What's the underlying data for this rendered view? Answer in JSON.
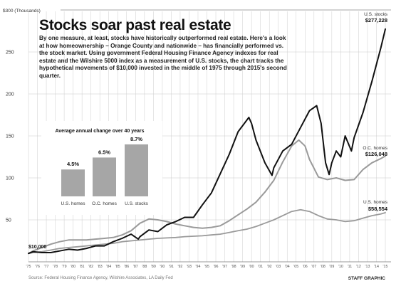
{
  "headline": "Stocks soar past real estate",
  "intro": "By one measure, at least, stocks have historically outperformed real estate. Here's a look at how homeownership – Orange County and nationwide – has financially performed vs. the stock market. Using government Federal Housing Finance Agency indexes for real estate and the Wilshire 5000 index as a measurement of U.S. stocks, the chart tracks the hypothetical movements of $10,000 invested in the middle of 1975 through 2015's second quarter.",
  "footer": {
    "source": "Source: Federal Housing Finance Agency, Wilshire Associates, LA Daily Fed",
    "credit": "STAFF GRAPHIC"
  },
  "colors": {
    "stocks": "#111111",
    "oc_homes": "#9a9a9a",
    "us_homes": "#9a9a9a",
    "grid": "#c8c8c8",
    "inset_bars": "#a6a6a6"
  },
  "chart_data": [
    {
      "type": "line",
      "ylabel": "$300 (Thousands)",
      "ylim": [
        0,
        300
      ],
      "yticks": [
        50,
        100,
        150,
        200,
        250
      ],
      "xlim": [
        1975.5,
        2015.5
      ],
      "xtick_labels": [
        "'75",
        "'76",
        "'77",
        "'78",
        "'79",
        "'80",
        "'81",
        "'82",
        "'83",
        "'84",
        "'85",
        "'86",
        "'87",
        "'88",
        "'89",
        "'90",
        "'91",
        "'92",
        "'93",
        "'94",
        "'95",
        "'96",
        "'97",
        "'98",
        "'99",
        "'00",
        "'01",
        "'02",
        "'03",
        "'04",
        "'05",
        "'06",
        "'07",
        "'08",
        "'09",
        "'10",
        "'11",
        "'12",
        "'13",
        "'14",
        "'15"
      ],
      "start_label": "$10,000",
      "grid": true,
      "series": [
        {
          "name": "U.S. stocks",
          "end_label": "$277,228",
          "points": [
            [
              1975.5,
              10
            ],
            [
              1976,
              12
            ],
            [
              1977,
              11
            ],
            [
              1978,
              11
            ],
            [
              1979,
              13
            ],
            [
              1980,
              15
            ],
            [
              1981,
              14
            ],
            [
              1982,
              16
            ],
            [
              1983,
              19
            ],
            [
              1984,
              19
            ],
            [
              1985,
              24
            ],
            [
              1986,
              28
            ],
            [
              1987,
              33
            ],
            [
              1987.8,
              27
            ],
            [
              1988,
              30
            ],
            [
              1989,
              38
            ],
            [
              1990,
              36
            ],
            [
              1991,
              44
            ],
            [
              1992,
              48
            ],
            [
              1993,
              53
            ],
            [
              1994,
              53
            ],
            [
              1995,
              68
            ],
            [
              1996,
              82
            ],
            [
              1997,
              105
            ],
            [
              1998,
              128
            ],
            [
              1999,
              155
            ],
            [
              2000.2,
              172
            ],
            [
              2000.5,
              165
            ],
            [
              2001,
              145
            ],
            [
              2002,
              118
            ],
            [
              2002.8,
              103
            ],
            [
              2003,
              112
            ],
            [
              2004,
              132
            ],
            [
              2005,
              140
            ],
            [
              2006,
              160
            ],
            [
              2007,
              180
            ],
            [
              2007.8,
              186
            ],
            [
              2008.3,
              165
            ],
            [
              2008.8,
              118
            ],
            [
              2009.2,
              104
            ],
            [
              2009.5,
              118
            ],
            [
              2010,
              132
            ],
            [
              2010.5,
              125
            ],
            [
              2011,
              150
            ],
            [
              2011.7,
              132
            ],
            [
              2012,
              148
            ],
            [
              2013,
              178
            ],
            [
              2014,
              215
            ],
            [
              2015,
              255
            ],
            [
              2015.5,
              277.2
            ]
          ]
        },
        {
          "name": "O.C. homes",
          "end_label": "$126,048",
          "points": [
            [
              1975.5,
              10
            ],
            [
              1976,
              13
            ],
            [
              1977,
              17
            ],
            [
              1978,
              21
            ],
            [
              1979,
              24
            ],
            [
              1980,
              26
            ],
            [
              1981,
              26
            ],
            [
              1982,
              26
            ],
            [
              1983,
              27
            ],
            [
              1984,
              28
            ],
            [
              1985,
              29
            ],
            [
              1986,
              32
            ],
            [
              1987,
              37
            ],
            [
              1988,
              46
            ],
            [
              1989,
              51
            ],
            [
              1990,
              50
            ],
            [
              1991,
              48
            ],
            [
              1992,
              45
            ],
            [
              1993,
              43
            ],
            [
              1994,
              41
            ],
            [
              1995,
              40
            ],
            [
              1996,
              41
            ],
            [
              1997,
              43
            ],
            [
              1998,
              49
            ],
            [
              1999,
              56
            ],
            [
              2000,
              63
            ],
            [
              2001,
              71
            ],
            [
              2002,
              83
            ],
            [
              2003,
              97
            ],
            [
              2004,
              119
            ],
            [
              2005,
              138
            ],
            [
              2005.8,
              145
            ],
            [
              2006.5,
              138
            ],
            [
              2007,
              122
            ],
            [
              2008,
              101
            ],
            [
              2009,
              98
            ],
            [
              2010,
              100
            ],
            [
              2011,
              97
            ],
            [
              2012,
              98
            ],
            [
              2013,
              110
            ],
            [
              2014,
              118
            ],
            [
              2015,
              123
            ],
            [
              2015.5,
              126
            ]
          ]
        },
        {
          "name": "U.S. homes",
          "end_label": "$58,554",
          "points": [
            [
              1975.5,
              10
            ],
            [
              1976,
              11
            ],
            [
              1977,
              12
            ],
            [
              1978,
              14
            ],
            [
              1979,
              16
            ],
            [
              1980,
              17
            ],
            [
              1981,
              18
            ],
            [
              1982,
              19
            ],
            [
              1983,
              20
            ],
            [
              1984,
              21
            ],
            [
              1985,
              22
            ],
            [
              1986,
              24
            ],
            [
              1987,
              25
            ],
            [
              1988,
              26
            ],
            [
              1989,
              27
            ],
            [
              1990,
              28
            ],
            [
              1991,
              28.5
            ],
            [
              1992,
              29
            ],
            [
              1993,
              30
            ],
            [
              1994,
              30.5
            ],
            [
              1995,
              31
            ],
            [
              1996,
              32
            ],
            [
              1997,
              33
            ],
            [
              1998,
              35
            ],
            [
              1999,
              37
            ],
            [
              2000,
              39
            ],
            [
              2001,
              42
            ],
            [
              2002,
              46
            ],
            [
              2003,
              50
            ],
            [
              2004,
              55
            ],
            [
              2005,
              60
            ],
            [
              2006,
              62
            ],
            [
              2007,
              60
            ],
            [
              2008,
              55
            ],
            [
              2009,
              51
            ],
            [
              2010,
              50
            ],
            [
              2011,
              48
            ],
            [
              2012,
              49
            ],
            [
              2013,
              52
            ],
            [
              2014,
              55
            ],
            [
              2015,
              57
            ],
            [
              2015.5,
              58.6
            ]
          ]
        }
      ]
    },
    {
      "type": "bar",
      "title": "Average annual change over 40 years",
      "categories": [
        "U.S. homes",
        "O.C. homes",
        "U.S. stocks"
      ],
      "values": [
        4.5,
        6.5,
        8.7
      ],
      "value_labels": [
        "4.5%",
        "6.5%",
        "8.7%"
      ]
    }
  ]
}
